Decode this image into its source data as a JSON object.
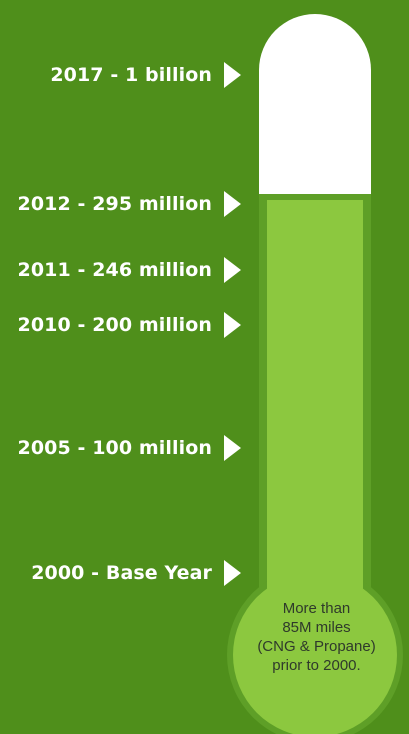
{
  "colors": {
    "background": "#4f8f1b",
    "fill": "#8cc83f",
    "tube_border": "#5e9f27",
    "empty": "#ffffff",
    "bulb_ring": "#79b537"
  },
  "milestones": [
    {
      "label": "2017 - 1 billion",
      "icon": "arrow-right-icon"
    },
    {
      "label": "2012 - 295 million",
      "icon": "arrow-right-icon"
    },
    {
      "label": "2011 - 246 million",
      "icon": "arrow-right-icon"
    },
    {
      "label": "2010 - 200 million",
      "icon": "arrow-right-icon"
    },
    {
      "label": "2005 - 100 million",
      "icon": "arrow-right-icon"
    },
    {
      "label": "2000 - Base Year",
      "icon": "arrow-right-icon"
    }
  ],
  "bulb_note": {
    "line1": "More than",
    "line2": "85M miles",
    "line3": "(CNG & Propane)",
    "line4": "prior to 2000."
  }
}
